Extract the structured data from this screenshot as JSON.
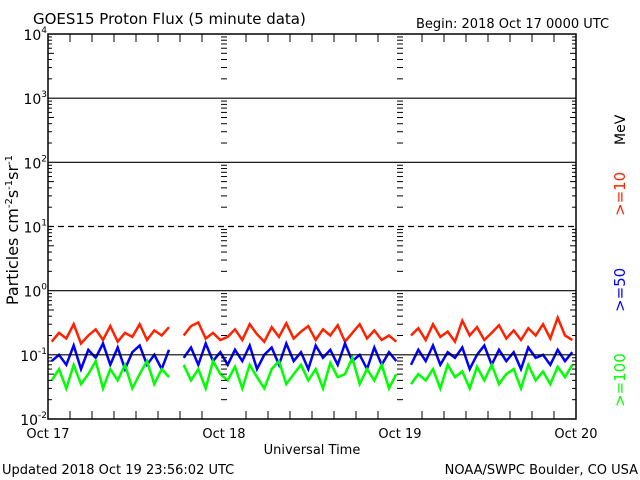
{
  "chart_data": {
    "type": "line",
    "title": "GOES15 Proton Flux (5 minute data)",
    "subtitle": "Begin: 2018 Oct 17 0000 UTC",
    "xlabel": "Universal Time",
    "ylabel": "Particles cm",
    "ylabel_parts": [
      "Particles cm",
      "-2",
      "s",
      "-1",
      "sr",
      "-1"
    ],
    "x_unit": "hours since 2018 Oct 17 0000 UTC",
    "xlim": [
      0,
      72
    ],
    "x_ticks": [
      {
        "h": 0,
        "label": "Oct 17"
      },
      {
        "h": 24,
        "label": "Oct 18"
      },
      {
        "h": 48,
        "label": "Oct 19"
      },
      {
        "h": 72,
        "label": "Oct 20"
      }
    ],
    "yscale": "log",
    "ylim": [
      0.01,
      10000
    ],
    "y_ticks": [
      {
        "exp": "4"
      },
      {
        "exp": "3"
      },
      {
        "exp": "2"
      },
      {
        "exp": "1"
      },
      {
        "exp": "0"
      },
      {
        "exp": "-1"
      },
      {
        "exp": "-2"
      }
    ],
    "y_tick_base": "10",
    "grid_solid": [
      1000,
      100,
      1,
      0.1
    ],
    "grid_dashed": [
      10
    ],
    "unit_label": "MeV",
    "series": [
      {
        "name": ">=10",
        "color": "#ff2200",
        "values": [
          0.16,
          0.22,
          0.18,
          0.3,
          0.15,
          0.2,
          0.25,
          0.17,
          0.28,
          0.16,
          0.22,
          0.19,
          0.3,
          0.17,
          0.24,
          0.2,
          0.27,
          null,
          0.2,
          0.28,
          0.32,
          0.18,
          0.22,
          0.17,
          0.19,
          0.25,
          0.17,
          0.3,
          0.21,
          0.16,
          0.27,
          0.19,
          0.31,
          0.18,
          0.23,
          0.28,
          0.17,
          0.25,
          0.2,
          0.29,
          0.16,
          0.22,
          0.3,
          0.18,
          0.24,
          0.17,
          0.2,
          0.16,
          null,
          0.2,
          0.26,
          0.17,
          0.3,
          0.19,
          0.23,
          0.16,
          0.34,
          0.2,
          0.27,
          0.17,
          0.22,
          0.29,
          0.18,
          0.24,
          0.17,
          0.26,
          0.2,
          0.3,
          0.18,
          0.38,
          0.2,
          0.17
        ]
      },
      {
        "name": ">=50",
        "color": "#0000ff",
        "values": [
          0.08,
          0.1,
          0.07,
          0.14,
          0.06,
          0.12,
          0.09,
          0.15,
          0.07,
          0.13,
          0.06,
          0.11,
          0.14,
          0.07,
          0.1,
          0.06,
          0.12,
          null,
          0.09,
          0.13,
          0.07,
          0.15,
          0.08,
          0.11,
          0.07,
          0.12,
          0.08,
          0.14,
          0.06,
          0.1,
          0.13,
          0.07,
          0.15,
          0.08,
          0.11,
          0.06,
          0.14,
          0.09,
          0.12,
          0.07,
          0.15,
          0.08,
          0.1,
          0.06,
          0.13,
          0.07,
          0.11,
          0.08,
          null,
          0.07,
          0.12,
          0.08,
          0.14,
          0.07,
          0.11,
          0.09,
          0.13,
          0.06,
          0.1,
          0.14,
          0.07,
          0.12,
          0.08,
          0.11,
          0.06,
          0.13,
          0.09,
          0.1,
          0.07,
          0.12,
          0.08,
          0.11
        ]
      },
      {
        "name": ">=100",
        "color": "#00ff00",
        "values": [
          0.04,
          0.06,
          0.03,
          0.07,
          0.035,
          0.05,
          0.08,
          0.03,
          0.06,
          0.04,
          0.07,
          0.03,
          0.05,
          0.08,
          0.035,
          0.06,
          0.045,
          null,
          0.07,
          0.04,
          0.06,
          0.03,
          0.08,
          0.05,
          0.04,
          0.065,
          0.03,
          0.07,
          0.045,
          0.03,
          0.06,
          0.08,
          0.035,
          0.05,
          0.07,
          0.04,
          0.06,
          0.03,
          0.075,
          0.045,
          0.05,
          0.09,
          0.035,
          0.06,
          0.04,
          0.07,
          0.03,
          0.05,
          null,
          0.035,
          0.05,
          0.04,
          0.06,
          0.03,
          0.07,
          0.045,
          0.055,
          0.03,
          0.065,
          0.04,
          0.07,
          0.035,
          0.05,
          0.06,
          0.03,
          0.07,
          0.04,
          0.055,
          0.035,
          0.065,
          0.045,
          0.07
        ]
      }
    ]
  },
  "footer": {
    "updated": "Updated 2018 Oct 19 23:56:02 UTC",
    "credit": "NOAA/SWPC Boulder, CO USA"
  }
}
